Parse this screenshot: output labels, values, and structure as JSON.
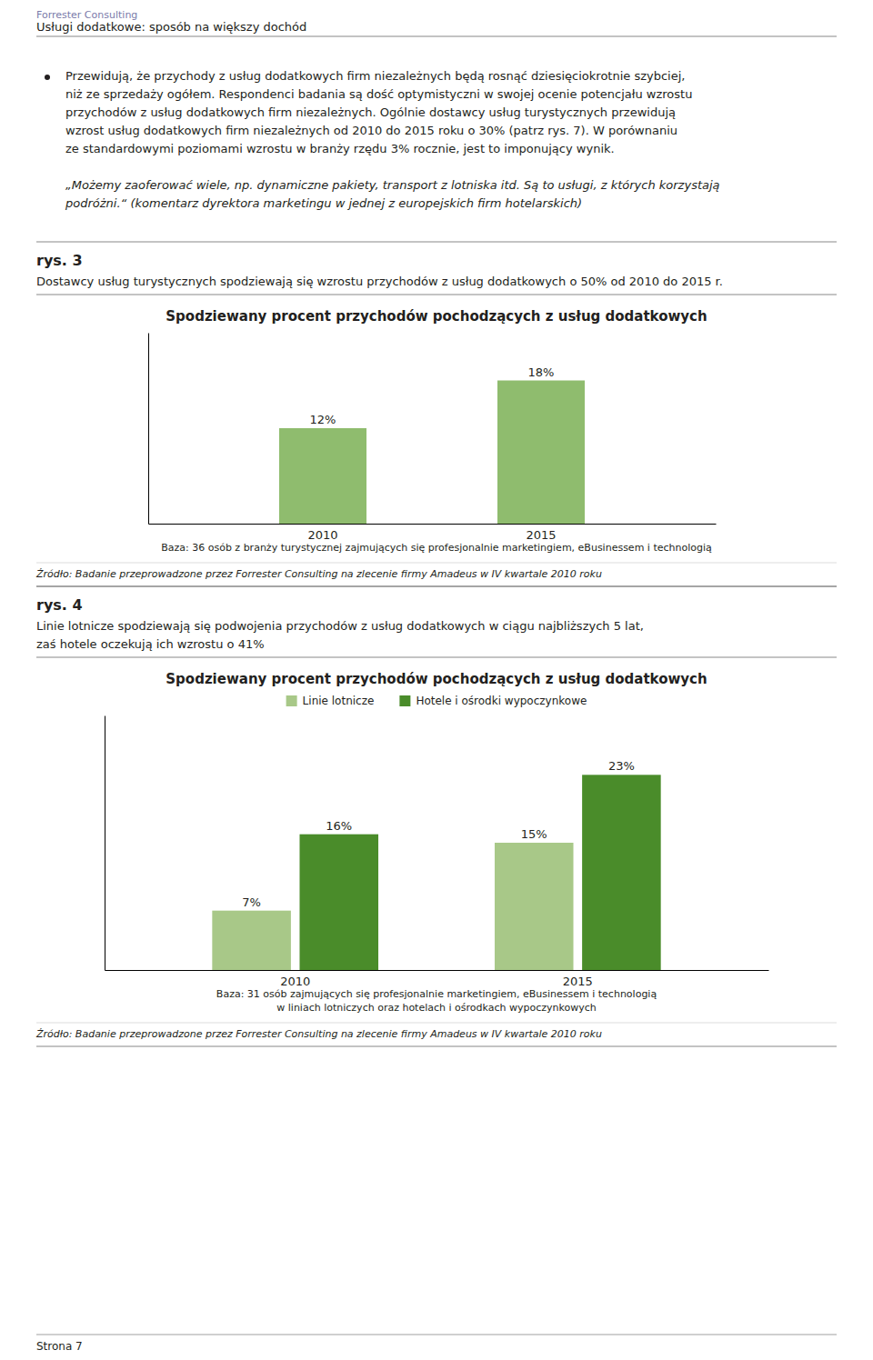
{
  "header_company": "Forrester Consulting",
  "header_title": "Usługi dodatkowe: sposób na większy dochód",
  "body_lines": [
    "Przewidują, że przychody z usług dodatkowych firm niezależnych będą rosnąć dziesięciokrotnie szybciej,",
    "niż ze sprzedaży ogółem. Respondenci badania są dość optymistyczni w swojej ocenie potencjału wzrostu",
    "przychodów z usług dodatkowych firm niezależnych. Ogólnie dostawcy usług turystycznych przewidują",
    "wzrost usług dodatkowych firm niezależnych od 2010 do 2015 roku o 30% (patrz rys. 7). W porównaniu",
    "ze standardowymi poziomami wzrostu w branży rzędu 3% rocznie, jest to imponujący wynik."
  ],
  "italic_lines": [
    "„Możemy zaoferować wiele, np. dynamiczne pakiety, transport z lotniska itd. Są to usługi, z których korzystają",
    "podróżni.“ (komentarz dyrektora marketingu w jednej z europejskich firm hotelarskich)"
  ],
  "sections": [
    {
      "label": "rys. 3",
      "description": [
        "Dostawcy usług turystycznych spodziewają się wzrostu przychodów z usług dodatkowych o 50% od 2010 do 2015 r."
      ]
    },
    {
      "label": "rys. 4",
      "description": [
        "Linie lotnicze spodziewają się podwojenia przychodów z usług dodatkowych w ciągu najbliższych 5 lat,",
        "zaś hotele oczekują ich wzrostu o 41%"
      ]
    }
  ],
  "footer": "Strona 7",
  "chart_data": [
    {
      "type": "bar",
      "title": "Spodziewany procent przychodów pochodzących z usług dodatkowych",
      "categories": [
        "2010",
        "2015"
      ],
      "values": [
        12,
        18
      ],
      "value_labels": [
        "12%",
        "18%"
      ],
      "color": "#8FBC6E",
      "ylim": [
        0,
        24
      ],
      "data_labels": true,
      "tick_labels": "x",
      "grid": false,
      "annotations": [
        "Baza: 36 osób z branży turystycznej zajmujących się profesjonalnie marketingiem, eBusinessem i technologią"
      ],
      "source": "Źródło: Badanie przeprowadzone przez Forrester Consulting na zlecenie firmy Amadeus w IV kwartale 2010 roku"
    },
    {
      "type": "bar",
      "title": "Spodziewany procent przychodów pochodzących z usług dodatkowych",
      "categories": [
        "2010",
        "2015"
      ],
      "series": [
        {
          "name": "Linie lotnicze",
          "color": "#A8C888",
          "values": [
            7,
            15
          ],
          "value_labels": [
            "7%",
            "15%"
          ]
        },
        {
          "name": "Hotele i ośrodki wypoczynkowe",
          "color": "#4A8C2A",
          "values": [
            16,
            23
          ],
          "value_labels": [
            "16%",
            "23%"
          ]
        }
      ],
      "ylim": [
        0,
        30
      ],
      "data_labels": true,
      "tick_labels": "x",
      "grid": false,
      "legend": "top",
      "annotations": [
        "Baza: 31 osób zajmujących się profesjonalnie marketingiem, eBusinessem i technologią",
        "w liniach lotniczych oraz hotelach i ośrodkach wypoczynkowych"
      ],
      "source": "Źródło: Badanie przeprowadzone przez Forrester Consulting na zlecenie firmy Amadeus w IV kwartale 2010 roku"
    }
  ]
}
